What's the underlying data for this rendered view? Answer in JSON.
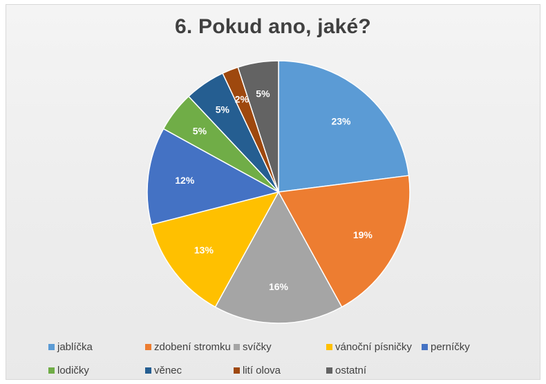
{
  "chart_data": {
    "type": "pie",
    "title": "6. Pokud ano, jaké?",
    "slices": [
      {
        "label": "jablíčka",
        "value": 23,
        "data_label": "23%",
        "color": "#5b9bd5"
      },
      {
        "label": "zdobení stromku",
        "value": 19,
        "data_label": "19%",
        "color": "#ed7d31"
      },
      {
        "label": "svíčky",
        "value": 16,
        "data_label": "16%",
        "color": "#a5a5a5"
      },
      {
        "label": "vánoční písničky",
        "value": 13,
        "data_label": "13%",
        "color": "#ffc000"
      },
      {
        "label": "perníčky",
        "value": 12,
        "data_label": "12%",
        "color": "#4472c4"
      },
      {
        "label": "lodičky",
        "value": 5,
        "data_label": "5%",
        "color": "#70ad47"
      },
      {
        "label": "věnec",
        "value": 5,
        "data_label": "5%",
        "color": "#255e91"
      },
      {
        "label": "lití olova",
        "value": 2,
        "data_label": "2%",
        "color": "#9e480e"
      },
      {
        "label": "ostatní",
        "value": 5,
        "data_label": "5%",
        "color": "#636363"
      }
    ],
    "legend_position": "bottom"
  }
}
